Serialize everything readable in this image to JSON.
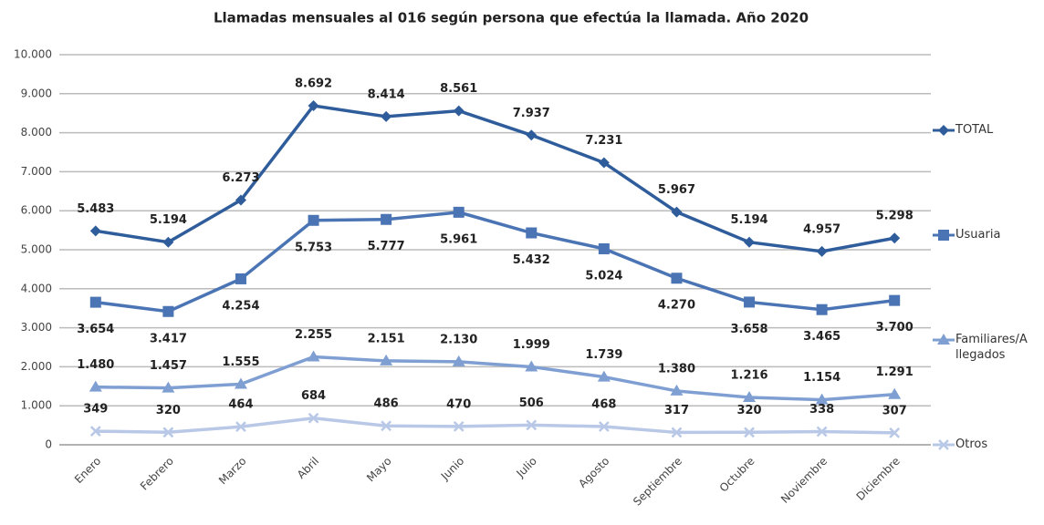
{
  "chart_data": {
    "type": "line",
    "title": "Llamadas mensuales al 016 según persona que efectúa la llamada. Año 2020",
    "categories": [
      "Enero",
      "Febrero",
      "Marzo",
      "Abril",
      "Mayo",
      "Junio",
      "Julio",
      "Agosto",
      "Septiembre",
      "Octubre",
      "Noviembre",
      "Diciembre"
    ],
    "series": [
      {
        "name": "TOTAL",
        "color": "#2f5d9b",
        "marker": "diamond",
        "values": [
          5483,
          5194,
          6273,
          8692,
          8414,
          8561,
          7937,
          7231,
          5967,
          5194,
          4957,
          5298
        ],
        "value_labels": [
          "5.483",
          "5.194",
          "6.273",
          "8.692",
          "8.414",
          "8.561",
          "7.937",
          "7.231",
          "5.967",
          "5.194",
          "4.957",
          "5.298"
        ]
      },
      {
        "name": "Usuaria",
        "color": "#4a74b4",
        "marker": "square",
        "values": [
          3654,
          3417,
          4254,
          5753,
          5777,
          5961,
          5432,
          5024,
          4270,
          3658,
          3465,
          3700
        ],
        "value_labels": [
          "3.654",
          "3.417",
          "4.254",
          "5.753",
          "5.777",
          "5.961",
          "5.432",
          "5.024",
          "4.270",
          "3.658",
          "3.465",
          "3.700"
        ]
      },
      {
        "name": "Familiares/Allegados",
        "color": "#7f9fd2",
        "marker": "triangle",
        "values": [
          1480,
          1457,
          1555,
          2255,
          2151,
          2130,
          1999,
          1739,
          1380,
          1216,
          1154,
          1291
        ],
        "value_labels": [
          "1.480",
          "1.457",
          "1.555",
          "2.255",
          "2.151",
          "2.130",
          "1.999",
          "1.739",
          "1.380",
          "1.216",
          "1.154",
          "1.291"
        ]
      },
      {
        "name": "Otros",
        "color": "#b8c8e6",
        "marker": "x",
        "values": [
          349,
          320,
          464,
          684,
          486,
          470,
          506,
          468,
          317,
          320,
          338,
          307
        ]
      }
    ],
    "ylim": [
      0,
      10000
    ],
    "yticks": [
      0,
      {
        "value": 1000,
        "label": "1.000"
      },
      {
        "value": 2000,
        "label": "2.000"
      },
      {
        "value": 3000,
        "label": "3.000"
      },
      {
        "value": 4000,
        "label": "4.000"
      },
      {
        "value": 5000,
        "label": "5.000"
      },
      {
        "value": 6000,
        "label": "6.000"
      },
      {
        "value": 7000,
        "label": "7.000"
      },
      {
        "value": 8000,
        "label": "8.000"
      },
      {
        "value": 9000,
        "label": "9.000"
      },
      {
        "value": 10000,
        "label": "10.000"
      }
    ],
    "grid": true,
    "legend": "right"
  }
}
